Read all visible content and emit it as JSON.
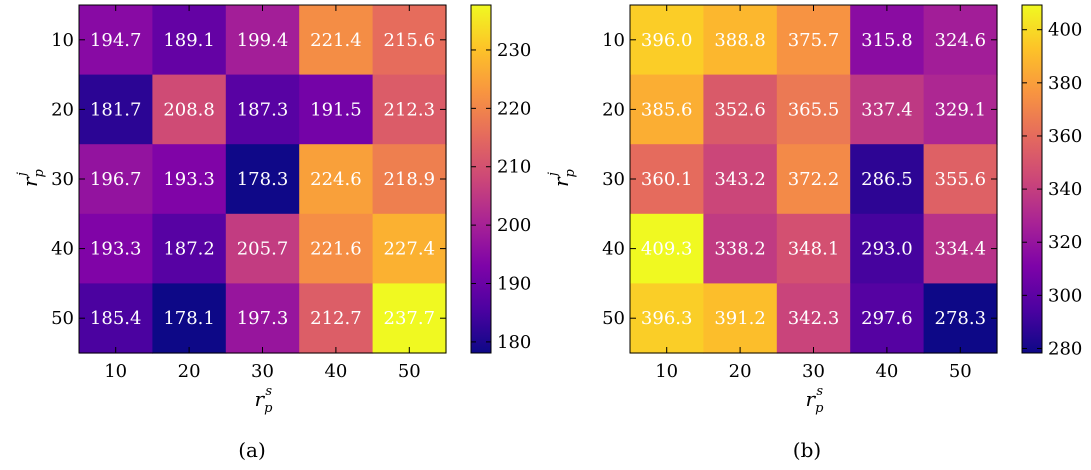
{
  "chart_data": [
    {
      "type": "heatmap",
      "panel_label": "(a)",
      "xlabel": {
        "base": "r",
        "sub": "p",
        "sup": "s"
      },
      "ylabel": {
        "base": "r",
        "sub": "p",
        "sup": "j"
      },
      "x_categories": [
        "10",
        "20",
        "30",
        "40",
        "50"
      ],
      "y_categories": [
        "10",
        "20",
        "30",
        "40",
        "50"
      ],
      "values": [
        [
          194.7,
          189.1,
          199.4,
          221.4,
          215.6
        ],
        [
          181.7,
          208.8,
          187.3,
          191.5,
          212.3
        ],
        [
          196.7,
          193.3,
          178.3,
          224.6,
          218.9
        ],
        [
          193.3,
          187.2,
          205.7,
          221.6,
          227.4
        ],
        [
          185.4,
          178.1,
          197.3,
          212.7,
          237.7
        ]
      ],
      "value_labels": [
        [
          "194.7",
          "189.1",
          "199.4",
          "221.4",
          "215.6"
        ],
        [
          "181.7",
          "208.8",
          "187.3",
          "191.5",
          "212.3"
        ],
        [
          "196.7",
          "193.3",
          "178.3",
          "224.6",
          "218.9"
        ],
        [
          "193.3",
          "187.2",
          "205.7",
          "221.6",
          "227.4"
        ],
        [
          "185.4",
          "178.1",
          "197.3",
          "212.7",
          "237.7"
        ]
      ],
      "colorbar": {
        "range": [
          178.1,
          237.7
        ],
        "ticks": [
          180,
          190,
          200,
          210,
          220,
          230
        ],
        "tick_labels": [
          "180",
          "190",
          "200",
          "210",
          "220",
          "230"
        ]
      },
      "colormap": "plasma",
      "grid": false
    },
    {
      "type": "heatmap",
      "panel_label": "(b)",
      "xlabel": {
        "base": "r",
        "sub": "p",
        "sup": "s"
      },
      "ylabel": {
        "base": "r",
        "sub": "p",
        "sup": "j"
      },
      "x_categories": [
        "10",
        "20",
        "30",
        "40",
        "50"
      ],
      "y_categories": [
        "10",
        "20",
        "30",
        "40",
        "50"
      ],
      "values": [
        [
          396.0,
          388.8,
          375.7,
          315.8,
          324.6
        ],
        [
          385.6,
          352.6,
          365.5,
          337.4,
          329.1
        ],
        [
          360.1,
          343.2,
          372.2,
          286.5,
          355.6
        ],
        [
          409.3,
          338.2,
          348.1,
          293.0,
          334.4
        ],
        [
          396.3,
          391.2,
          342.3,
          297.6,
          278.3
        ]
      ],
      "value_labels": [
        [
          "396.0",
          "388.8",
          "375.7",
          "315.8",
          "324.6"
        ],
        [
          "385.6",
          "352.6",
          "365.5",
          "337.4",
          "329.1"
        ],
        [
          "360.1",
          "343.2",
          "372.2",
          "286.5",
          "355.6"
        ],
        [
          "409.3",
          "338.2",
          "348.1",
          "293.0",
          "334.4"
        ],
        [
          "396.3",
          "391.2",
          "342.3",
          "297.6",
          "278.3"
        ]
      ],
      "colorbar": {
        "range": [
          278.3,
          409.3
        ],
        "ticks": [
          280,
          300,
          320,
          340,
          360,
          380,
          400
        ],
        "tick_labels": [
          "280",
          "300",
          "320",
          "340",
          "360",
          "380",
          "400"
        ]
      },
      "colormap": "plasma",
      "grid": false
    }
  ]
}
